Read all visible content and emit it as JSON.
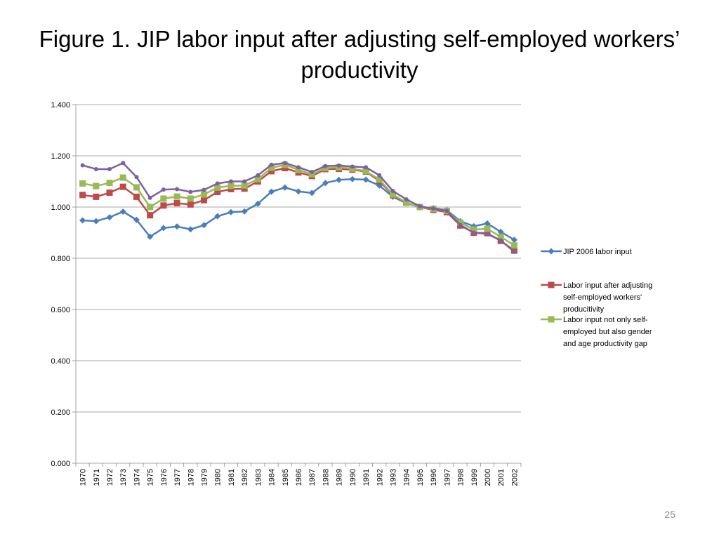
{
  "slide": {
    "title_line1": "Figure 1. JIP labor input after adjusting self-employed workers’",
    "title_line2": "productivity",
    "page_number": "25"
  },
  "chart_data": {
    "type": "line",
    "title": "",
    "xlabel": "",
    "ylabel": "",
    "ylim": [
      0,
      1.4
    ],
    "y_ticks": [
      "0.000",
      "0.200",
      "0.400",
      "0.600",
      "0.800",
      "1.000",
      "1.200",
      "1.400"
    ],
    "grid": "horizontal",
    "legend_position": "right",
    "x": [
      "1970",
      "1971",
      "1972",
      "1973",
      "1974",
      "1975",
      "1976",
      "1977",
      "1978",
      "1979",
      "1980",
      "1981",
      "1982",
      "1983",
      "1984",
      "1985",
      "1986",
      "1987",
      "1988",
      "1989",
      "1990",
      "1991",
      "1992",
      "1993",
      "1994",
      "1995",
      "1996",
      "1997",
      "1998",
      "1999",
      "2000",
      "2001",
      "2002"
    ],
    "series": [
      {
        "name": "JIP 2006 labor input",
        "legend_lines": [
          "JIP 2006 labor input"
        ],
        "color": "#4a7ebb",
        "marker": "diamond",
        "values": [
          0.948,
          0.945,
          0.96,
          0.982,
          0.95,
          0.884,
          0.918,
          0.924,
          0.913,
          0.929,
          0.964,
          0.98,
          0.983,
          1.013,
          1.06,
          1.076,
          1.061,
          1.055,
          1.094,
          1.106,
          1.109,
          1.107,
          1.084,
          1.04,
          1.015,
          1.0,
          0.996,
          0.988,
          0.945,
          0.925,
          0.936,
          0.903,
          0.872
        ]
      },
      {
        "name": "Labor input after adjusting self-employed workers' producitivity",
        "legend_lines": [
          "Labor input after adjusting",
          "self-employed workers'",
          "producitivity"
        ],
        "color": "#be4b48",
        "marker": "square",
        "values": [
          1.047,
          1.04,
          1.056,
          1.079,
          1.04,
          0.968,
          1.006,
          1.015,
          1.01,
          1.027,
          1.059,
          1.07,
          1.072,
          1.1,
          1.14,
          1.152,
          1.135,
          1.121,
          1.148,
          1.149,
          1.146,
          1.138,
          1.102,
          1.046,
          1.017,
          1.0,
          0.989,
          0.98,
          0.928,
          0.9,
          0.898,
          0.868,
          0.83
        ]
      },
      {
        "name": "Labor input not only self-employed but also gender and age productivity gap",
        "legend_lines": [
          "Labor input not only self-",
          "employed but also gender",
          "and age productivity gap"
        ],
        "color": "#98b954",
        "marker": "square",
        "values": [
          1.092,
          1.082,
          1.094,
          1.115,
          1.077,
          1.0,
          1.033,
          1.041,
          1.033,
          1.049,
          1.076,
          1.083,
          1.084,
          1.109,
          1.153,
          1.165,
          1.145,
          1.128,
          1.152,
          1.155,
          1.15,
          1.14,
          1.107,
          1.049,
          1.017,
          1.0,
          0.993,
          0.985,
          0.939,
          0.912,
          0.915,
          0.884,
          0.85
        ]
      },
      {
        "name": "",
        "legend_lines": [],
        "color": "#7d60a0",
        "marker": "circle",
        "values": [
          1.163,
          1.148,
          1.148,
          1.172,
          1.117,
          1.036,
          1.068,
          1.07,
          1.059,
          1.067,
          1.092,
          1.1,
          1.1,
          1.124,
          1.165,
          1.172,
          1.155,
          1.137,
          1.16,
          1.162,
          1.158,
          1.155,
          1.124,
          1.063,
          1.03,
          1.003,
          0.994,
          0.985,
          0.93,
          0.9,
          0.895,
          0.87,
          0.825
        ]
      }
    ]
  }
}
